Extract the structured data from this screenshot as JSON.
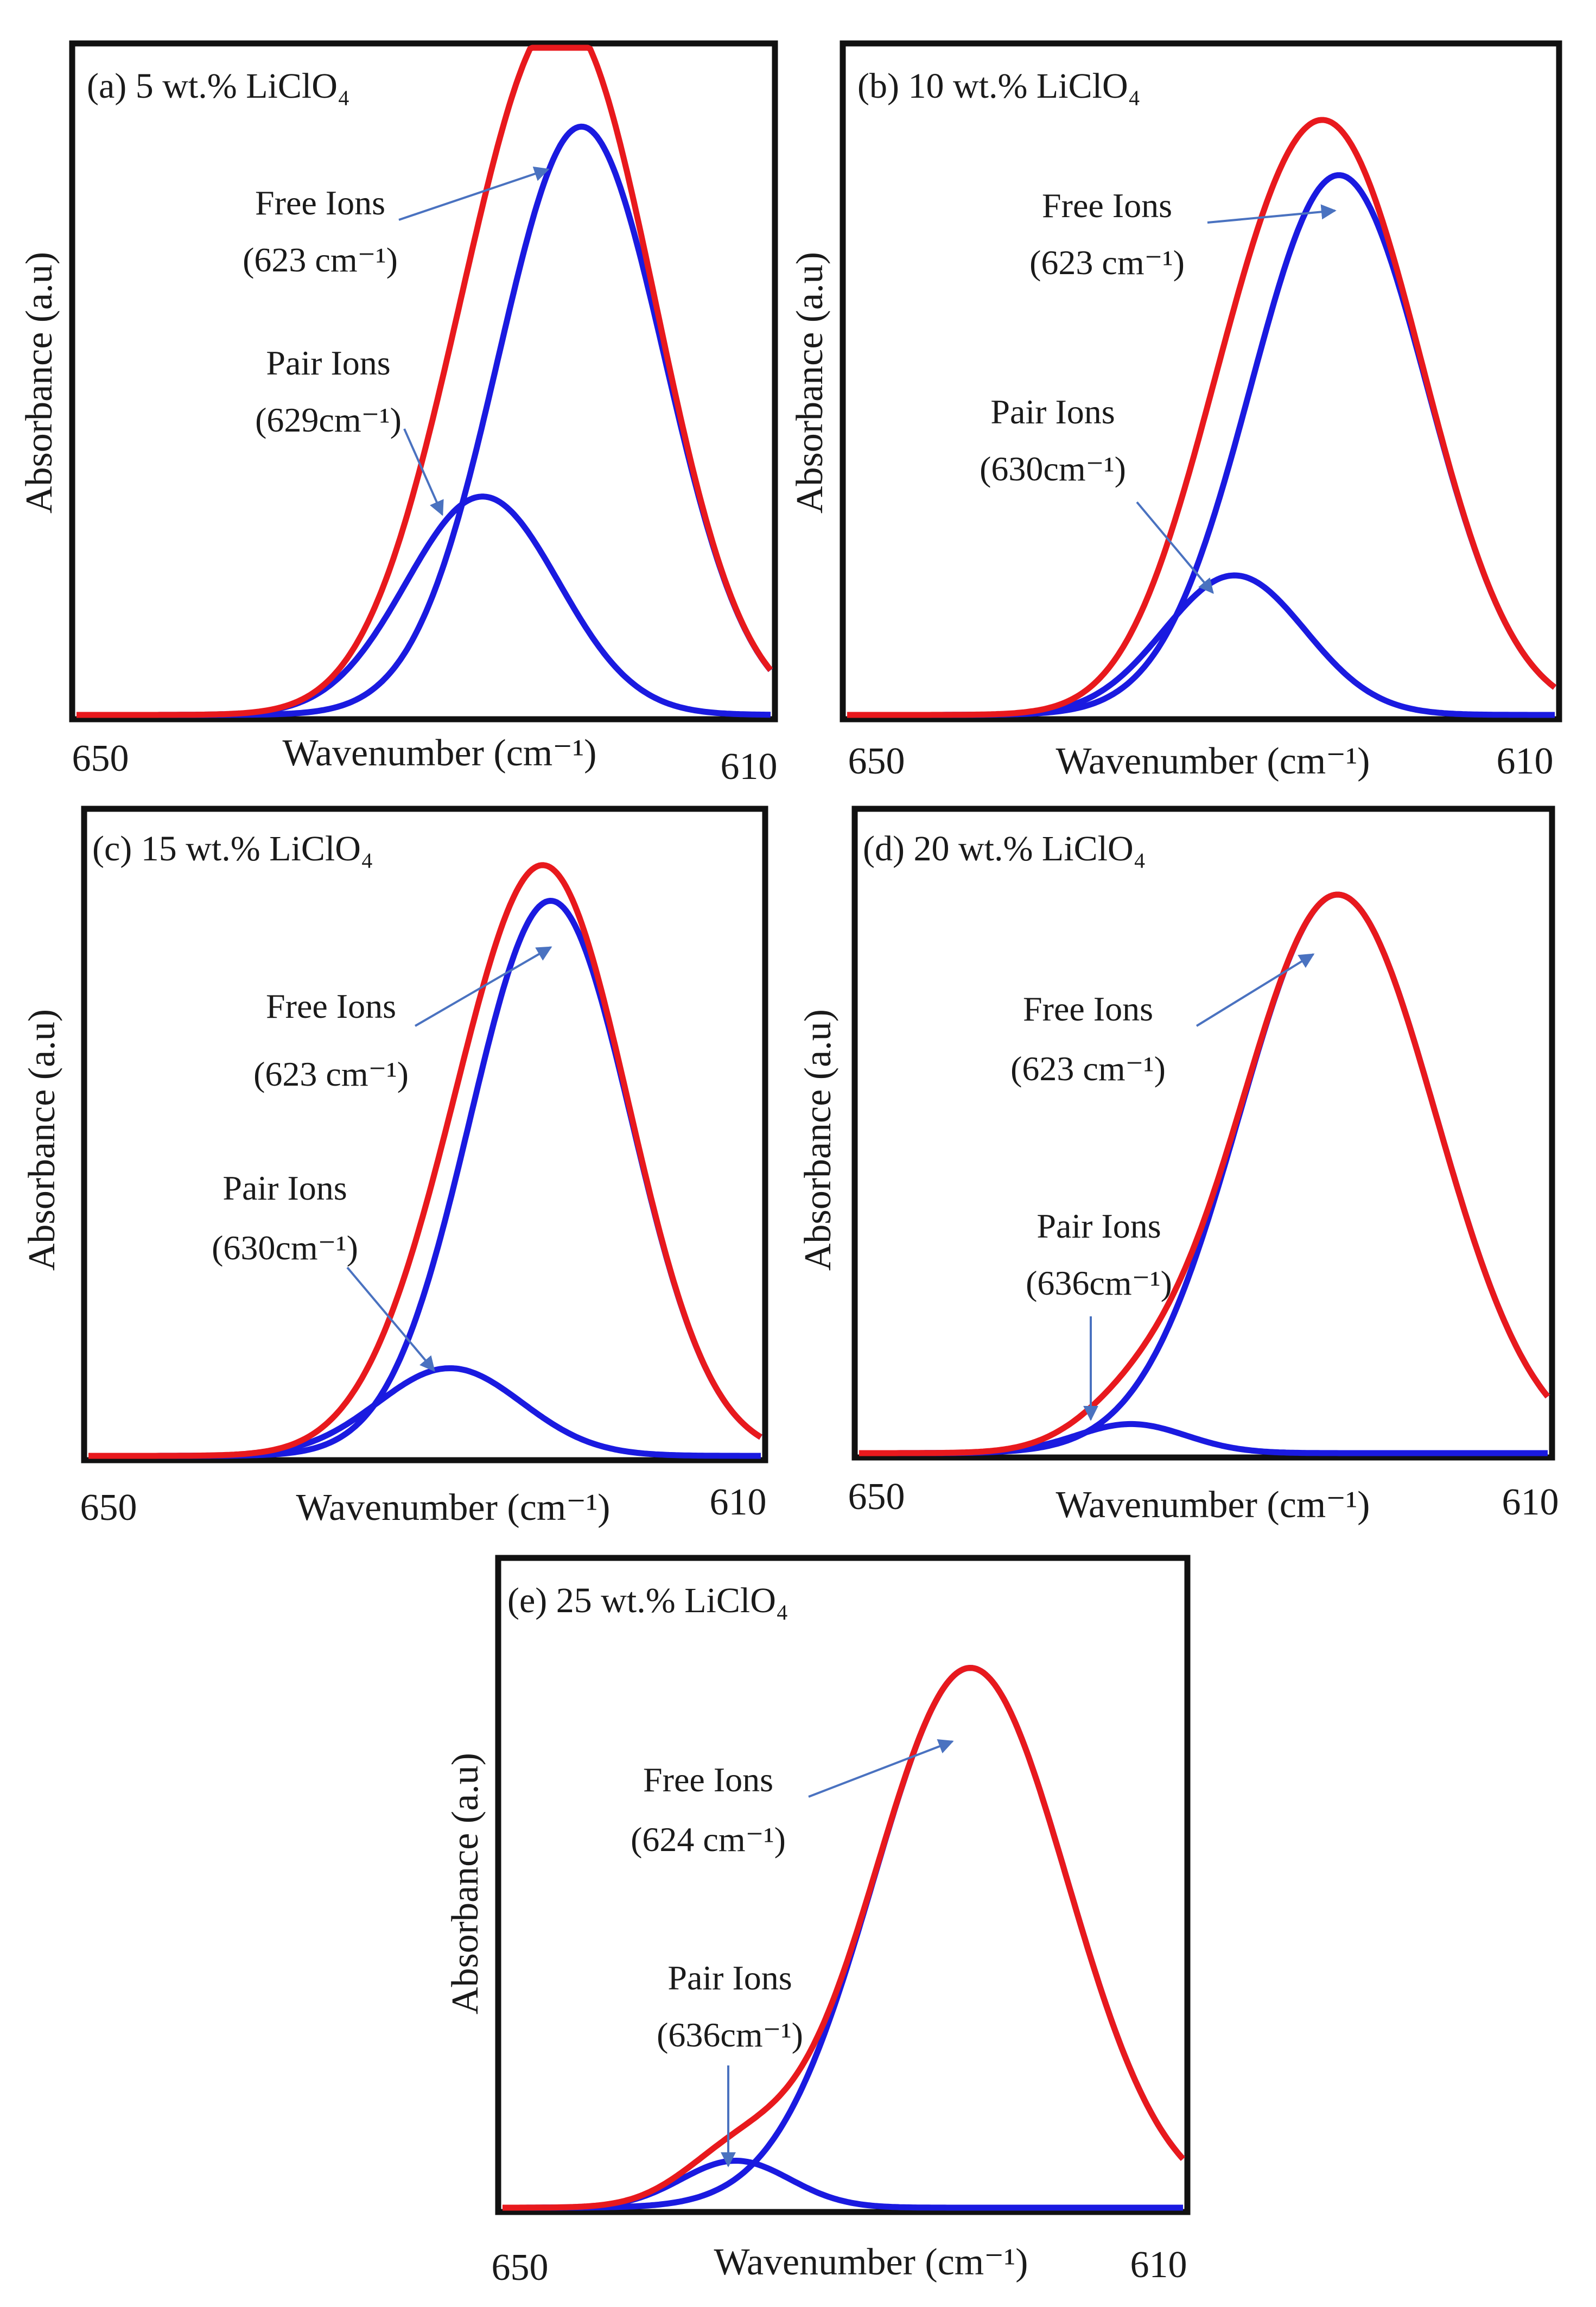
{
  "figure": {
    "name": "FTIR deconvolution of perchlorate band in LiClO4 electrolytes"
  },
  "styles": {
    "fit_color": "#e8191d",
    "component_color": "#1a1ae0",
    "arrow_color": "#4a72c0",
    "frame_color": "#111111"
  },
  "chart_data": [
    {
      "id": "a",
      "type": "line",
      "title": "(a) 5 wt.% LiClO₄",
      "xlabel": "Wavenumber (cm⁻¹)",
      "ylabel": "Absorbance (a.u)",
      "xlim": [
        650,
        610
      ],
      "ylim": [
        0,
        1.1
      ],
      "x_ticks": [
        "650",
        "610"
      ],
      "free_ions": {
        "center": 620.9,
        "sigma": 4.8,
        "amp": 0.97
      },
      "pair_ions": {
        "center": 626.6,
        "sigma": 4.4,
        "amp": 0.36
      },
      "annotations": {
        "free": {
          "label": "Free Ions",
          "value": "(623 cm⁻¹)"
        },
        "pair": {
          "label": "Pair Ions",
          "value": "(629cm⁻¹)"
        }
      }
    },
    {
      "id": "b",
      "type": "line",
      "title": "(b) 10 wt.% LiClO₄",
      "xlabel": "Wavenumber (cm⁻¹)",
      "ylabel": "Absorbance (a.u)",
      "xlim": [
        650,
        610
      ],
      "ylim": [
        0,
        1.1
      ],
      "x_ticks": [
        "650",
        "610"
      ],
      "free_ions": {
        "center": 622.2,
        "sigma": 5.0,
        "amp": 0.89
      },
      "pair_ions": {
        "center": 628.1,
        "sigma": 4.0,
        "amp": 0.23
      },
      "annotations": {
        "free": {
          "label": "Free Ions",
          "value": "(623 cm⁻¹)"
        },
        "pair": {
          "label": "Pair Ions",
          "value": "(630cm⁻¹)"
        }
      }
    },
    {
      "id": "c",
      "type": "line",
      "title": "(c) 15 wt.% LiClO₄",
      "xlabel": "Wavenumber (cm⁻¹)",
      "ylabel": "Absorbance (a.u)",
      "xlim": [
        650,
        610
      ],
      "ylim": [
        0,
        1.1
      ],
      "x_ticks": [
        "650",
        "610"
      ],
      "free_ions": {
        "center": 622.5,
        "sigma": 4.8,
        "amp": 0.95
      },
      "pair_ions": {
        "center": 628.5,
        "sigma": 4.3,
        "amp": 0.15
      },
      "annotations": {
        "free": {
          "label": "Free Ions",
          "value": "(623 cm⁻¹)"
        },
        "pair": {
          "label": "Pair Ions",
          "value": "(630cm⁻¹)"
        }
      }
    },
    {
      "id": "d",
      "type": "line",
      "title": "(d) 20 wt.% LiClO₄",
      "xlabel": "Wavenumber (cm⁻¹)",
      "ylabel": "Absorbance (a.u)",
      "xlim": [
        650,
        610
      ],
      "ylim": [
        0,
        1.1
      ],
      "x_ticks": [
        "650",
        "610"
      ],
      "free_ions": {
        "center": 622.2,
        "sigma": 5.7,
        "amp": 0.96
      },
      "pair_ions": {
        "center": 634.2,
        "sigma": 3.2,
        "amp": 0.05
      },
      "annotations": {
        "free": {
          "label": "Free Ions",
          "value": "(623 cm⁻¹)"
        },
        "pair": {
          "label": "Pair Ions",
          "value": "(636cm⁻¹)"
        }
      }
    },
    {
      "id": "e",
      "type": "line",
      "title": "(e) 25 wt.% LiClO₄",
      "xlabel": "Wavenumber (cm⁻¹)",
      "ylabel": "Absorbance (a.u)",
      "xlim": [
        650,
        610
      ],
      "ylim": [
        0,
        1.1
      ],
      "x_ticks": [
        "650",
        "610"
      ],
      "free_ions": {
        "center": 622.5,
        "sigma": 5.7,
        "amp": 0.92
      },
      "pair_ions": {
        "center": 636.3,
        "sigma": 3.2,
        "amp": 0.08
      },
      "annotations": {
        "free": {
          "label": "Free Ions",
          "value": "(624 cm⁻¹)"
        },
        "pair": {
          "label": "Pair Ions",
          "value": "(636cm⁻¹)"
        }
      }
    }
  ]
}
